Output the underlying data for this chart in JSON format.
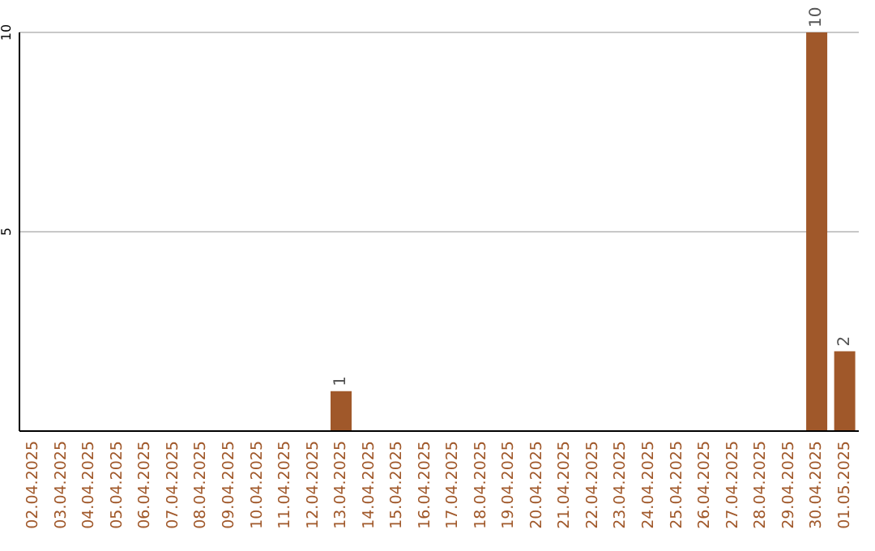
{
  "chart_data": {
    "type": "bar",
    "categories": [
      "02.04.2025",
      "03.04.2025",
      "04.04.2025",
      "05.04.2025",
      "06.04.2025",
      "07.04.2025",
      "08.04.2025",
      "09.04.2025",
      "10.04.2025",
      "11.04.2025",
      "12.04.2025",
      "13.04.2025",
      "14.04.2025",
      "15.04.2025",
      "16.04.2025",
      "17.04.2025",
      "18.04.2025",
      "19.04.2025",
      "20.04.2025",
      "21.04.2025",
      "22.04.2025",
      "23.04.2025",
      "24.04.2025",
      "25.04.2025",
      "26.04.2025",
      "27.04.2025",
      "28.04.2025",
      "29.04.2025",
      "30.04.2025",
      "01.05.2025"
    ],
    "values": [
      0,
      0,
      0,
      0,
      0,
      0,
      0,
      0,
      0,
      0,
      0,
      1,
      0,
      0,
      0,
      0,
      0,
      0,
      0,
      0,
      0,
      0,
      0,
      0,
      0,
      0,
      0,
      0,
      10,
      2
    ],
    "value_labels": [
      null,
      null,
      null,
      null,
      null,
      null,
      null,
      null,
      null,
      null,
      null,
      "1",
      null,
      null,
      null,
      null,
      null,
      null,
      null,
      null,
      null,
      null,
      null,
      null,
      null,
      null,
      null,
      null,
      "10",
      "2"
    ],
    "color": "#a0582a",
    "ylim": [
      0,
      10
    ],
    "yticks": [
      5,
      10
    ],
    "grid": "y"
  }
}
